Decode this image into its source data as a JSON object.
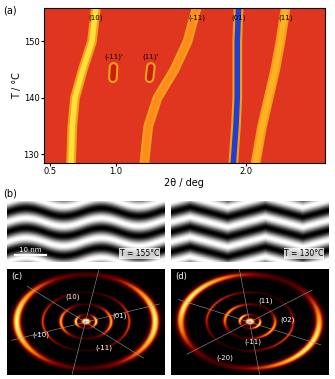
{
  "chart_data": {
    "type": "line",
    "title": "(a)",
    "x_label": "2θ / deg",
    "y_label": "T / °C",
    "xlim": [
      0.45,
      2.6
    ],
    "ylim": [
      128.5,
      156
    ],
    "xticks": [
      0.5,
      1.0,
      2.0
    ],
    "yticks": [
      130,
      140,
      150
    ],
    "series": [
      {
        "name": "(10)",
        "color": "#ffe03a",
        "x": [
          0.85,
          0.82,
          0.75,
          0.69,
          0.67,
          0.66
        ],
        "values": [
          156,
          150,
          145,
          140,
          135,
          128.5
        ]
      },
      {
        "name": "(-11)'",
        "color": "#c81e10",
        "x": [
          0.98,
          0.985
        ],
        "values": [
          143.5,
          145.5
        ]
      },
      {
        "name": "(11)'",
        "color": "#c81e10",
        "x": [
          1.26,
          1.27
        ],
        "values": [
          143.5,
          145.5
        ]
      },
      {
        "name": "(-11)",
        "color": "#ff8c1a",
        "x": [
          1.22,
          1.25,
          1.32,
          1.45,
          1.55,
          1.62
        ],
        "values": [
          128.5,
          135,
          140,
          145,
          150,
          156
        ]
      },
      {
        "name": "(01)",
        "color": "#1f3fd0",
        "x": [
          1.9,
          1.92,
          1.93,
          1.93,
          1.93,
          1.94
        ],
        "values": [
          128.5,
          135,
          140,
          145,
          150,
          156
        ]
      },
      {
        "name": "(11)",
        "color": "#ffb21f",
        "x": [
          2.07,
          2.12,
          2.17,
          2.22,
          2.26,
          2.3
        ],
        "values": [
          128.5,
          135,
          140,
          145,
          150,
          156
        ]
      }
    ]
  },
  "micrographs": {
    "label": "(b)",
    "scale_bar": "10 nm",
    "panels": [
      {
        "caption": "T = 155°C"
      },
      {
        "caption": "T = 130°C"
      }
    ]
  },
  "diffraction_patterns": [
    {
      "label": "(c)",
      "reflections": [
        "(10)",
        "(01)",
        "(-10)",
        "(-11)"
      ]
    },
    {
      "label": "(d)",
      "reflections": [
        "(11)",
        "(02)",
        "(-11)",
        "(-20)"
      ]
    }
  ]
}
